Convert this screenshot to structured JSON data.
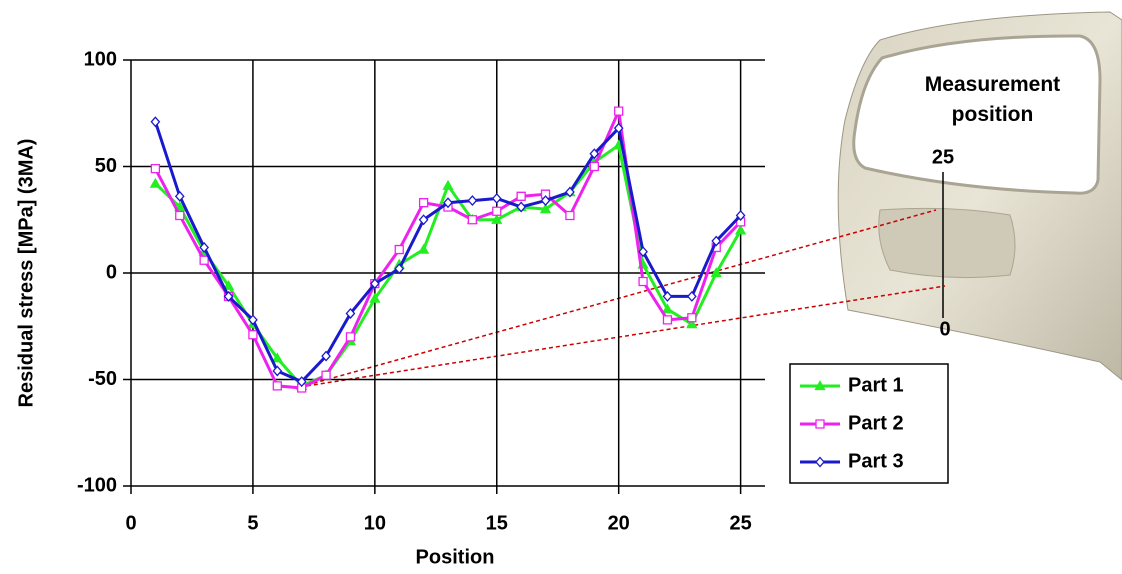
{
  "chart_data": {
    "type": "line",
    "xlabel": "Position",
    "ylabel": "Residual stress  [MPa] (3MA)",
    "x": [
      1,
      2,
      3,
      4,
      5,
      6,
      7,
      8,
      9,
      10,
      11,
      12,
      13,
      14,
      15,
      16,
      17,
      18,
      19,
      20,
      21,
      22,
      23,
      24,
      25
    ],
    "series": [
      {
        "name": "Part 1",
        "color": "#22ee22",
        "marker": "triangle",
        "values": [
          42,
          31,
          10,
          -6,
          -24,
          -40,
          -53,
          -48,
          -32,
          -12,
          4,
          11,
          41,
          25,
          25,
          31,
          30,
          38,
          52,
          60,
          4,
          -17,
          -24,
          0,
          20
        ]
      },
      {
        "name": "Part 2",
        "color": "#ee22ee",
        "marker": "square",
        "values": [
          49,
          27,
          6,
          -11,
          -29,
          -53,
          -54,
          -48,
          -30,
          -5,
          11,
          33,
          31,
          25,
          29,
          36,
          37,
          27,
          50,
          76,
          -4,
          -22,
          -21,
          12,
          24
        ]
      },
      {
        "name": "Part 3",
        "color": "#1a1acc",
        "marker": "diamond",
        "values": [
          71,
          36,
          12,
          -11,
          -22,
          -46,
          -51,
          -39,
          -19,
          -5,
          2,
          25,
          33,
          34,
          35,
          31,
          34,
          38,
          56,
          68,
          10,
          -11,
          -11,
          15,
          27
        ]
      }
    ],
    "xlim": [
      0,
      26
    ],
    "xticks": [
      0,
      5,
      10,
      15,
      20,
      25
    ],
    "ylim": [
      -100,
      100
    ],
    "yticks": [
      -100,
      -50,
      0,
      50,
      100
    ],
    "grid": true,
    "legend": "lower right",
    "annotations": {
      "label": "Measurement position",
      "top": "25",
      "bottom": "0"
    }
  }
}
